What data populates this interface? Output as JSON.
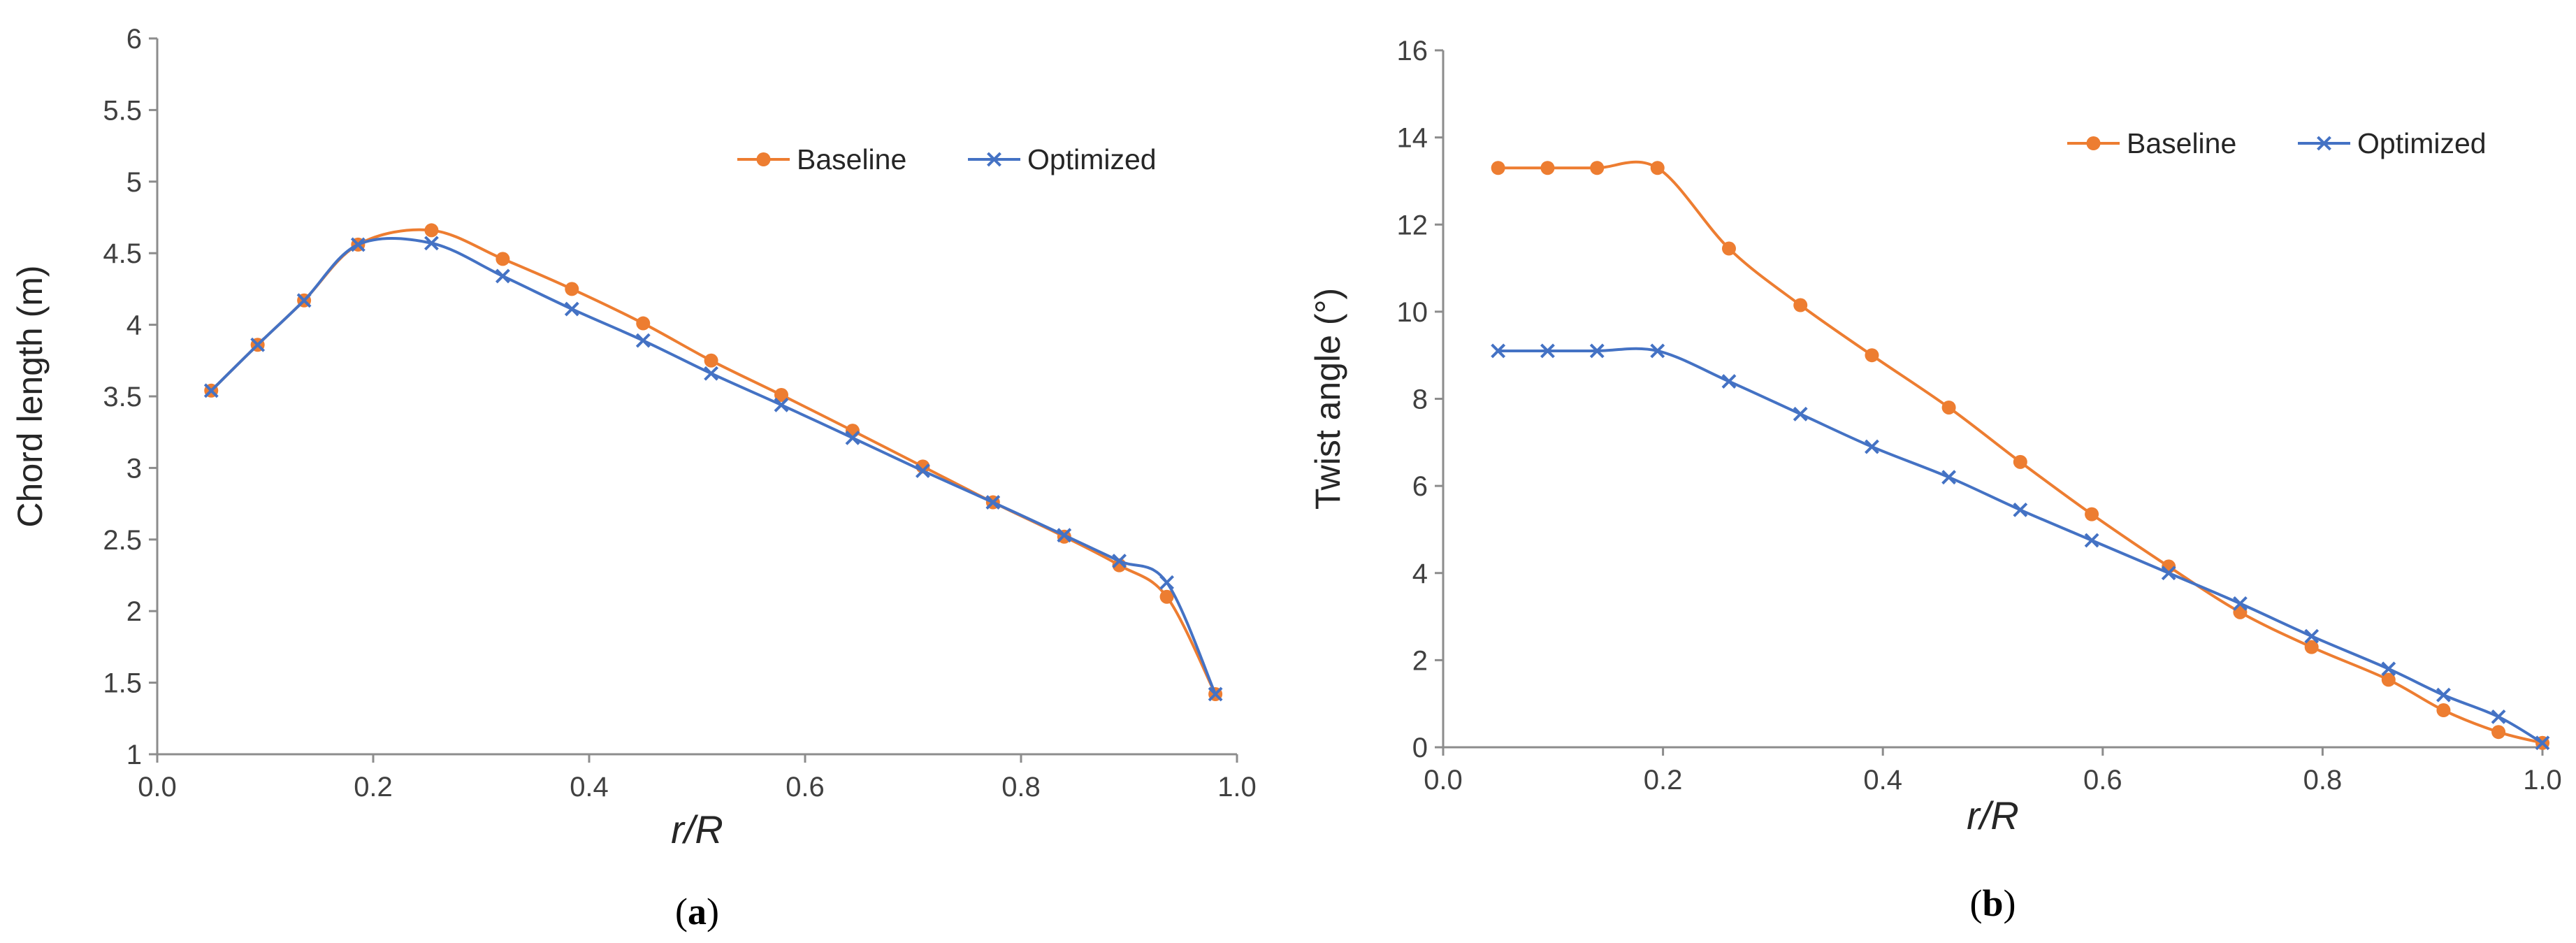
{
  "chart_data": [
    {
      "type": "line",
      "panel_label": "a",
      "xlabel": "r/R",
      "ylabel": "Chord length (m)",
      "xlim": [
        0.0,
        1.0
      ],
      "ylim": [
        1,
        6
      ],
      "x_ticks": [
        0.0,
        0.2,
        0.4,
        0.6,
        0.8,
        1.0
      ],
      "x_tick_labels": [
        "0.0",
        "0.2",
        "0.4",
        "0.6",
        "0.8",
        "1.0"
      ],
      "y_ticks": [
        1,
        1.5,
        2,
        2.5,
        3,
        3.5,
        4,
        4.5,
        5,
        5.5,
        6
      ],
      "y_tick_labels": [
        "1",
        "1.5",
        "2",
        "2.5",
        "3",
        "3.5",
        "4",
        "4.5",
        "5",
        "5.5",
        "6"
      ],
      "grid": false,
      "legend_position": "top-right",
      "series": [
        {
          "name": "Baseline",
          "color": "#ED7D31",
          "marker": "circle",
          "x": [
            0.05,
            0.093,
            0.136,
            0.186,
            0.254,
            0.32,
            0.384,
            0.45,
            0.513,
            0.578,
            0.644,
            0.709,
            0.774,
            0.84,
            0.891,
            0.935,
            0.98
          ],
          "y": [
            3.54,
            3.86,
            4.17,
            4.56,
            4.66,
            4.46,
            4.25,
            4.01,
            3.75,
            3.51,
            3.26,
            3.01,
            2.76,
            2.52,
            2.32,
            2.1,
            1.42
          ]
        },
        {
          "name": "Optimized",
          "color": "#4472C4",
          "marker": "x",
          "x": [
            0.05,
            0.093,
            0.136,
            0.186,
            0.254,
            0.32,
            0.384,
            0.45,
            0.513,
            0.578,
            0.644,
            0.709,
            0.774,
            0.84,
            0.891,
            0.935,
            0.98
          ],
          "y": [
            3.54,
            3.86,
            4.17,
            4.56,
            4.57,
            4.34,
            4.11,
            3.89,
            3.66,
            3.44,
            3.21,
            2.98,
            2.76,
            2.53,
            2.35,
            2.2,
            1.42
          ]
        }
      ]
    },
    {
      "type": "line",
      "panel_label": "b",
      "xlabel": "r/R",
      "ylabel": "Twist angle (°)",
      "xlim": [
        0.0,
        1.0
      ],
      "ylim": [
        0,
        16
      ],
      "x_ticks": [
        0.0,
        0.2,
        0.4,
        0.6,
        0.8,
        1.0
      ],
      "x_tick_labels": [
        "0.0",
        "0.2",
        "0.4",
        "0.6",
        "0.8",
        "1.0"
      ],
      "y_ticks": [
        0,
        2,
        4,
        6,
        8,
        10,
        12,
        14,
        16
      ],
      "y_tick_labels": [
        "0",
        "2",
        "4",
        "6",
        "8",
        "10",
        "12",
        "14",
        "16"
      ],
      "grid": false,
      "legend_position": "top-right",
      "series": [
        {
          "name": "Baseline",
          "color": "#ED7D31",
          "marker": "circle",
          "x": [
            0.05,
            0.095,
            0.14,
            0.195,
            0.26,
            0.325,
            0.39,
            0.46,
            0.525,
            0.59,
            0.66,
            0.725,
            0.79,
            0.86,
            0.91,
            0.96,
            1.0
          ],
          "y": [
            13.3,
            13.3,
            13.3,
            13.3,
            11.45,
            10.15,
            9.0,
            7.8,
            6.55,
            5.35,
            4.15,
            3.1,
            2.3,
            1.55,
            0.85,
            0.35,
            0.1
          ]
        },
        {
          "name": "Optimized",
          "color": "#4472C4",
          "marker": "x",
          "x": [
            0.05,
            0.095,
            0.14,
            0.195,
            0.26,
            0.325,
            0.39,
            0.46,
            0.525,
            0.59,
            0.66,
            0.725,
            0.79,
            0.86,
            0.91,
            0.96,
            1.0
          ],
          "y": [
            9.1,
            9.1,
            9.1,
            9.1,
            8.4,
            7.65,
            6.9,
            6.2,
            5.45,
            4.75,
            4.0,
            3.3,
            2.55,
            1.8,
            1.2,
            0.7,
            0.1
          ]
        }
      ]
    }
  ]
}
